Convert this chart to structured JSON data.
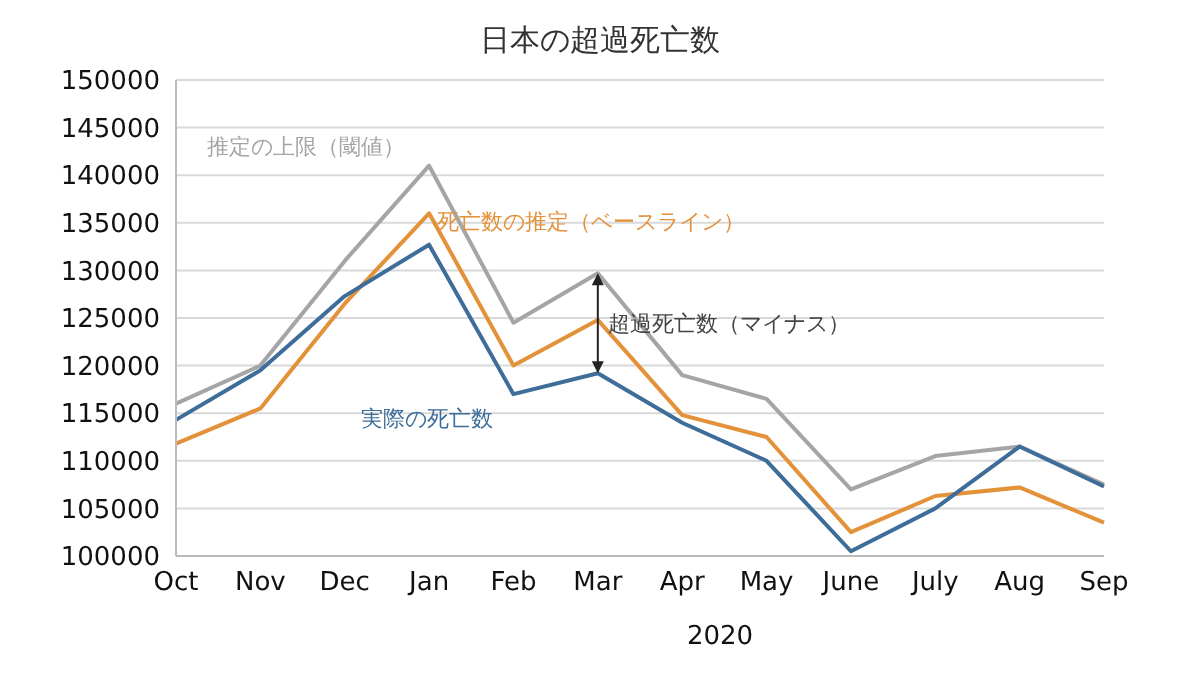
{
  "chart_data": {
    "type": "line",
    "title": "日本の超過死亡数",
    "xlabel": "2020",
    "categories": [
      "Oct",
      "Nov",
      "Dec",
      "Jan",
      "Feb",
      "Mar",
      "Apr",
      "May",
      "June",
      "July",
      "Aug",
      "Sep"
    ],
    "series": [
      {
        "name": "推定の上限（閾値）",
        "color": "#a5a5a5",
        "values": [
          116000,
          120000,
          131000,
          141000,
          124500,
          129700,
          119000,
          116500,
          107000,
          110500,
          111500,
          107500
        ]
      },
      {
        "name": "死亡数の推定（ベースライン）",
        "color": "#e3923a",
        "values": [
          111800,
          115500,
          126500,
          136000,
          120000,
          124800,
          114800,
          112500,
          102500,
          106300,
          107200,
          103500
        ]
      },
      {
        "name": "実際の死亡数",
        "color": "#3e6d99",
        "values": [
          114300,
          119500,
          127300,
          132700,
          117000,
          119200,
          114000,
          110000,
          100500,
          105000,
          111500,
          107300
        ]
      }
    ],
    "annotations": [
      {
        "text": "超過死亡数（マイナス）",
        "x": "Mar",
        "y": 124500
      }
    ],
    "ylim": [
      100000,
      150000
    ],
    "yticks": [
      100000,
      105000,
      110000,
      115000,
      120000,
      125000,
      130000,
      135000,
      140000,
      145000,
      150000
    ],
    "grid": "y",
    "marker": "none",
    "line_style": "solid"
  }
}
